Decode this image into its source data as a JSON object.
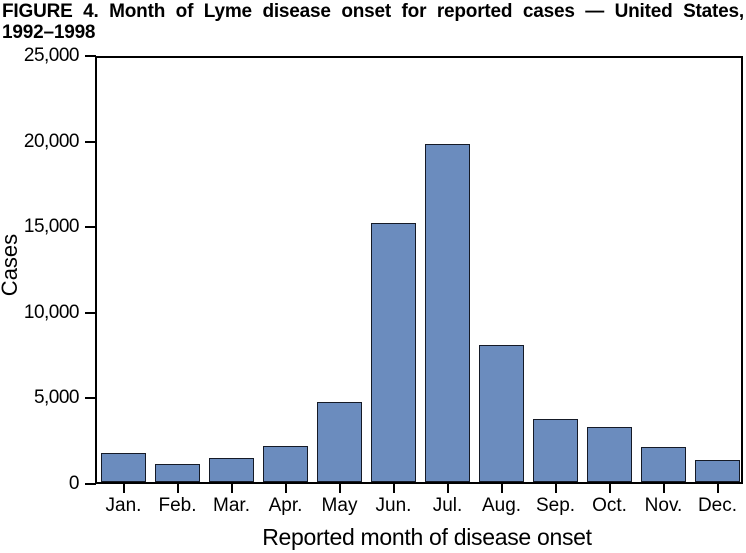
{
  "figure": {
    "title_line1": "FIGURE 4. Month of Lyme disease onset for reported cases — United States,",
    "title_line2": "1992–1998"
  },
  "chart_data": {
    "type": "bar",
    "title": "FIGURE 4. Month of Lyme disease onset for reported cases — United States, 1992–1998",
    "categories": [
      "Jan.",
      "Feb.",
      "Mar.",
      "Apr.",
      "May",
      "Jun.",
      "Jul.",
      "Aug.",
      "Sep.",
      "Oct.",
      "Nov.",
      "Dec."
    ],
    "values": [
      1700,
      1050,
      1400,
      2100,
      4700,
      15300,
      19900,
      8100,
      3700,
      3250,
      2050,
      1300
    ],
    "xlabel": "Reported month of disease onset",
    "ylabel": "Cases",
    "ylim": [
      0,
      25000
    ],
    "ytick_interval": 5000,
    "ytick_labels": [
      "0",
      "5,000",
      "10,000",
      "15,000",
      "20,000",
      "25,000"
    ],
    "grid": false,
    "legend": "none",
    "frame": "box",
    "bar_color": "#6b8cbe",
    "bar_border_color": "#151a26",
    "axis_color": "#000000"
  }
}
